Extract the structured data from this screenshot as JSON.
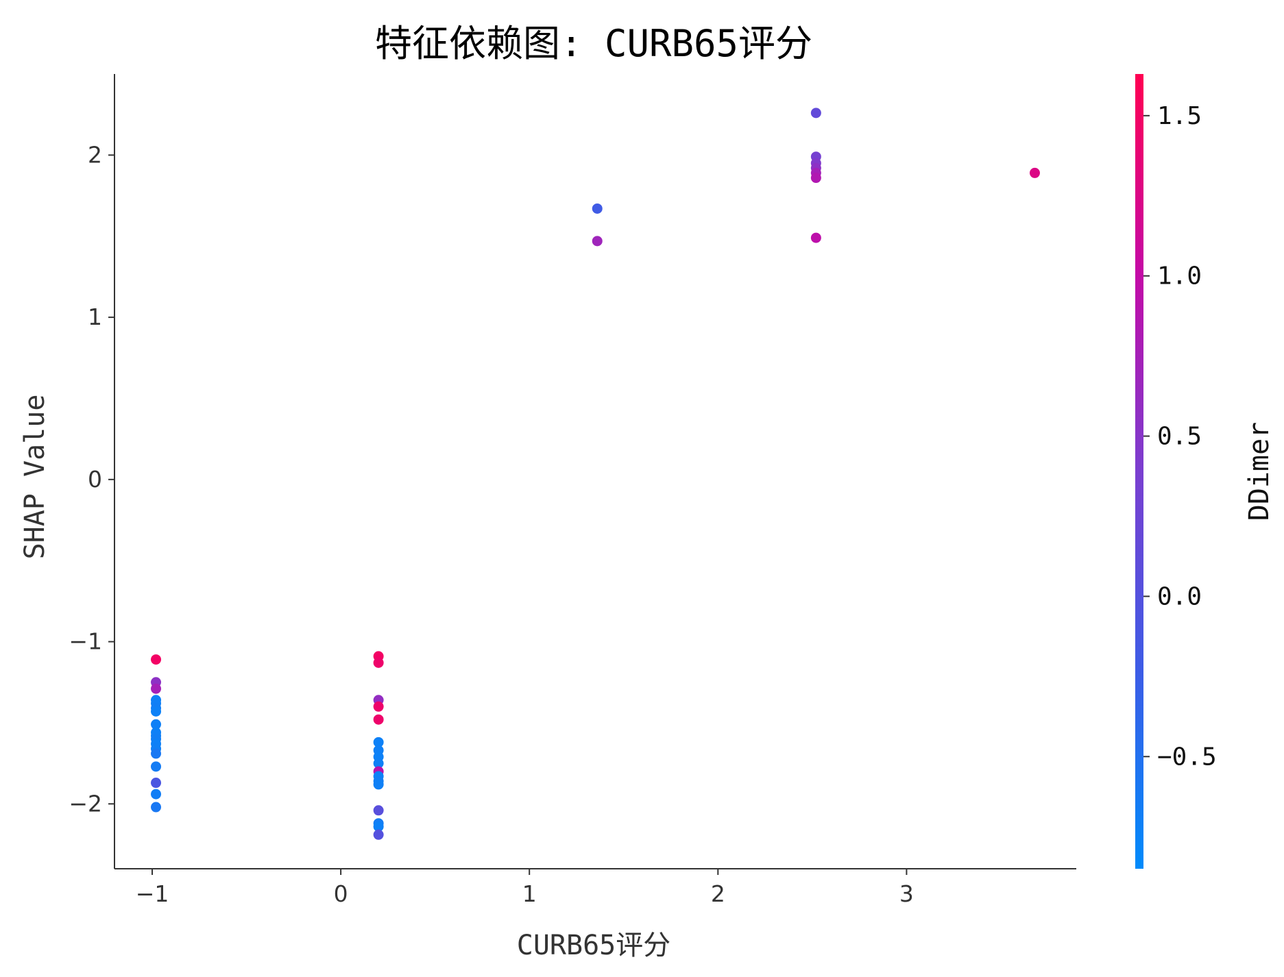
{
  "chart_data": {
    "type": "scatter",
    "title": "特征依赖图: CURB65评分",
    "xlabel": "CURB65评分",
    "ylabel": "SHAP Value",
    "xlim": [
      -1.2,
      3.9
    ],
    "ylim": [
      -2.4,
      2.5
    ],
    "x_ticks": [
      -1,
      0,
      1,
      2,
      3
    ],
    "y_ticks": [
      -2,
      -1,
      0,
      1,
      2
    ],
    "x_tick_labels": [
      "−1",
      "0",
      "1",
      "2",
      "3"
    ],
    "y_tick_labels": [
      "−2",
      "−1",
      "0",
      "1",
      "2"
    ],
    "grid": false,
    "colorbar": {
      "label": "DDimer",
      "range": [
        -0.85,
        1.63
      ],
      "ticks": [
        -0.5,
        0.0,
        0.5,
        1.0,
        1.5
      ],
      "tick_labels": [
        "−0.5",
        "0.0",
        "0.5",
        "1.0",
        "1.5"
      ],
      "colors": [
        "#008bfb",
        "#3d5ce6",
        "#7a3fd0",
        "#c40aa6",
        "#ff0052"
      ]
    },
    "points": [
      {
        "x": -0.98,
        "y": -1.11,
        "c": 1.5
      },
      {
        "x": -0.98,
        "y": -1.25,
        "c": 0.55
      },
      {
        "x": -0.98,
        "y": -1.29,
        "c": 0.75
      },
      {
        "x": -0.98,
        "y": -1.36,
        "c": -0.72
      },
      {
        "x": -0.98,
        "y": -1.38,
        "c": -0.7
      },
      {
        "x": -0.98,
        "y": -1.41,
        "c": -0.68
      },
      {
        "x": -0.98,
        "y": -1.43,
        "c": -0.72
      },
      {
        "x": -0.98,
        "y": -1.51,
        "c": -0.7
      },
      {
        "x": -0.98,
        "y": -1.56,
        "c": -0.72
      },
      {
        "x": -0.98,
        "y": -1.58,
        "c": -0.7
      },
      {
        "x": -0.98,
        "y": -1.6,
        "c": -0.68
      },
      {
        "x": -0.98,
        "y": -1.63,
        "c": -0.72
      },
      {
        "x": -0.98,
        "y": -1.66,
        "c": -0.7
      },
      {
        "x": -0.98,
        "y": -1.69,
        "c": -0.6
      },
      {
        "x": -0.98,
        "y": -1.77,
        "c": -0.65
      },
      {
        "x": -0.98,
        "y": -1.87,
        "c": -0.1
      },
      {
        "x": -0.98,
        "y": -1.94,
        "c": -0.68
      },
      {
        "x": -0.98,
        "y": -2.02,
        "c": -0.6
      },
      {
        "x": 0.2,
        "y": -1.09,
        "c": 1.5
      },
      {
        "x": 0.2,
        "y": -1.13,
        "c": 1.45
      },
      {
        "x": 0.2,
        "y": -1.36,
        "c": 0.6
      },
      {
        "x": 0.2,
        "y": -1.4,
        "c": 1.45
      },
      {
        "x": 0.2,
        "y": -1.48,
        "c": 1.45
      },
      {
        "x": 0.2,
        "y": -1.62,
        "c": -0.72
      },
      {
        "x": 0.2,
        "y": -1.67,
        "c": -0.7
      },
      {
        "x": 0.2,
        "y": -1.71,
        "c": -0.72
      },
      {
        "x": 0.2,
        "y": -1.75,
        "c": -0.7
      },
      {
        "x": 0.2,
        "y": -1.8,
        "c": 0.9
      },
      {
        "x": 0.2,
        "y": -1.83,
        "c": -0.72
      },
      {
        "x": 0.2,
        "y": -1.86,
        "c": -0.68
      },
      {
        "x": 0.2,
        "y": -1.88,
        "c": -0.7
      },
      {
        "x": 0.2,
        "y": -2.04,
        "c": 0.05
      },
      {
        "x": 0.2,
        "y": -2.12,
        "c": -0.65
      },
      {
        "x": 0.2,
        "y": -2.14,
        "c": -0.72
      },
      {
        "x": 0.2,
        "y": -2.19,
        "c": 0.0
      },
      {
        "x": 1.36,
        "y": 1.67,
        "c": -0.2
      },
      {
        "x": 1.36,
        "y": 1.47,
        "c": 0.7
      },
      {
        "x": 2.52,
        "y": 2.26,
        "c": 0.15
      },
      {
        "x": 2.52,
        "y": 1.99,
        "c": 0.35
      },
      {
        "x": 2.52,
        "y": 1.95,
        "c": 0.45
      },
      {
        "x": 2.52,
        "y": 1.92,
        "c": 0.55
      },
      {
        "x": 2.52,
        "y": 1.89,
        "c": 0.75
      },
      {
        "x": 2.52,
        "y": 1.86,
        "c": 0.85
      },
      {
        "x": 2.52,
        "y": 1.49,
        "c": 0.95
      },
      {
        "x": 3.68,
        "y": 1.89,
        "c": 1.25
      }
    ]
  }
}
